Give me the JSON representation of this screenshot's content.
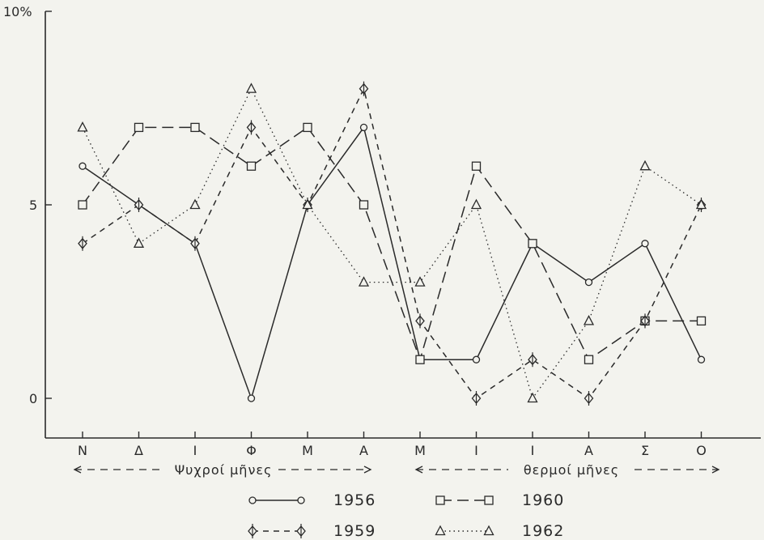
{
  "chart_data": {
    "type": "line",
    "categories": [
      "N",
      "Δ",
      "I",
      "Φ",
      "M",
      "A",
      "M",
      "I",
      "I",
      "A",
      "Σ",
      "O"
    ],
    "y_tick_labels": [
      "0",
      "5",
      "10%"
    ],
    "ylim": [
      0,
      10
    ],
    "grid": false,
    "legend_position": "bottom",
    "series": [
      {
        "name": "1956",
        "style": "solid",
        "marker": "circle",
        "values": [
          6,
          5,
          4,
          0,
          5,
          7,
          1,
          1,
          4,
          3,
          4,
          1
        ]
      },
      {
        "name": "1960",
        "style": "long-dash",
        "marker": "square",
        "values": [
          5,
          7,
          7,
          6,
          7,
          5,
          1,
          6,
          4,
          1,
          2,
          2
        ]
      },
      {
        "name": "1959",
        "style": "short-dash",
        "marker": "diamond-cross",
        "values": [
          4,
          5,
          4,
          7,
          5,
          8,
          2,
          0,
          1,
          0,
          2,
          5
        ]
      },
      {
        "name": "1962",
        "style": "dotted",
        "marker": "triangle",
        "values": [
          7,
          4,
          5,
          8,
          5,
          3,
          3,
          5,
          0,
          2,
          6,
          5
        ]
      }
    ],
    "period_labels": {
      "cold": "Ψυχροί μῆνες",
      "warm": "θερμοί μῆνες"
    },
    "color": "#2a2a2a"
  }
}
